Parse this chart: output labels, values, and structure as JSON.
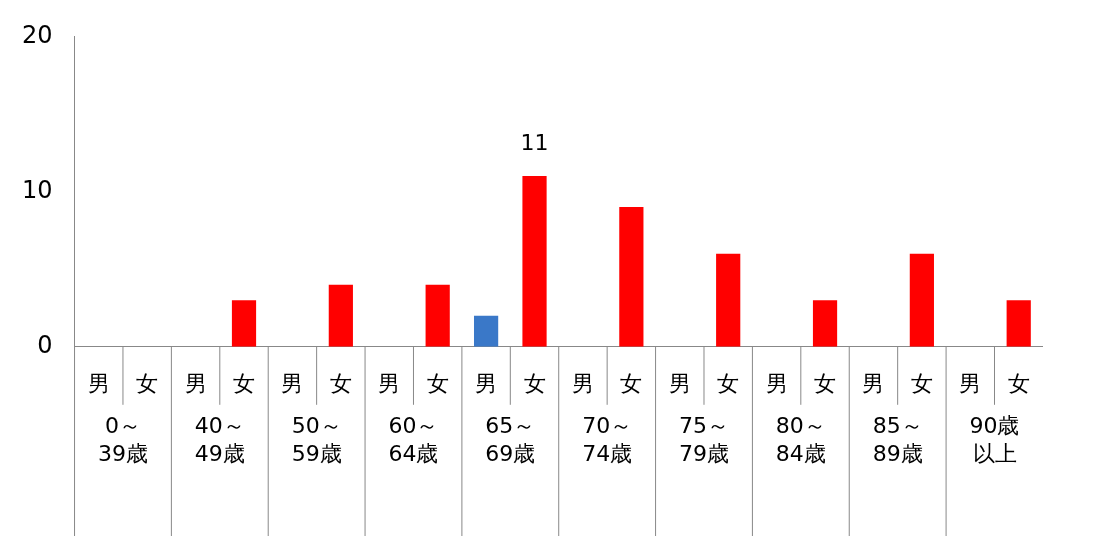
{
  "chart_data": {
    "type": "bar",
    "categories": [
      "0～39歳",
      "40～49歳",
      "50～59歳",
      "60～64歳",
      "65～69歳",
      "70～74歳",
      "75～79歳",
      "80～84歳",
      "85～89歳",
      "90歳以上"
    ],
    "series": [
      {
        "name": "男",
        "color": "#3a78c8",
        "values": [
          0,
          0,
          0,
          0,
          2,
          0,
          0,
          0,
          0,
          0
        ]
      },
      {
        "name": "女",
        "color": "#ff0000",
        "values": [
          0,
          3,
          4,
          4,
          11,
          9,
          6,
          3,
          6,
          3
        ],
        "value_labels": [
          null,
          null,
          null,
          null,
          "11",
          null,
          null,
          null,
          null,
          null
        ]
      }
    ],
    "ylim": [
      0,
      20
    ],
    "yticks": [
      0,
      10,
      20
    ],
    "grid": false,
    "legend": false
  }
}
